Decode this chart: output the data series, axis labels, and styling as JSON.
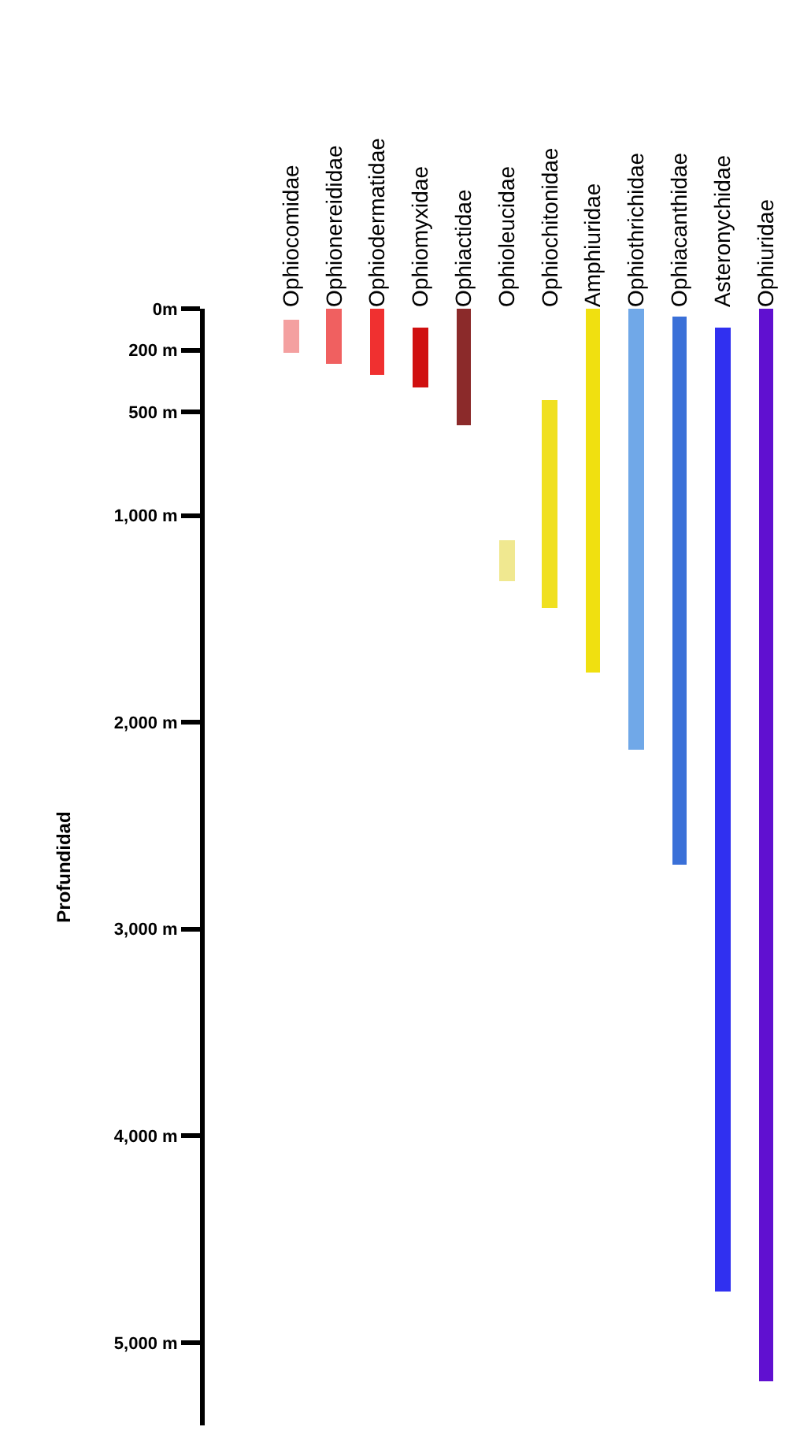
{
  "chart_data": {
    "type": "bar",
    "ylabel": "Profundidad",
    "categories": [
      "Ophiocomidae",
      "Ophionereididae",
      "Ophiodermatidae",
      "Ophiomyxidae",
      "Ophiactidae",
      "Ophioleucidae",
      "Ophiochitonidae",
      "Amphiuridae",
      "Ophiothrichidae",
      "Ophiacanthidae",
      "Asteronychidae",
      "Ophiuridae"
    ],
    "base": [
      50,
      0,
      0,
      90,
      0,
      1120,
      440,
      0,
      0,
      40,
      90,
      0
    ],
    "values": [
      160,
      270,
      320,
      290,
      560,
      200,
      1010,
      1760,
      2130,
      2650,
      4660,
      5190
    ],
    "colors": [
      "#f4a0a0",
      "#f06060",
      "#f03030",
      "#d01010",
      "#8b2a2a",
      "#f0e890",
      "#f0e020",
      "#f0e010",
      "#70a8e8",
      "#3a70d8",
      "#3030f0",
      "#6010d0"
    ],
    "ylim": [
      5400,
      0
    ],
    "yticks": [
      {
        "value": 0,
        "label": "0m"
      },
      {
        "value": 200,
        "label": "200 m"
      },
      {
        "value": 500,
        "label": "500 m"
      },
      {
        "value": 1000,
        "label": "1,000 m"
      },
      {
        "value": 2000,
        "label": "2,000 m"
      },
      {
        "value": 3000,
        "label": "3,000 m"
      },
      {
        "value": 4000,
        "label": "4,000 m"
      },
      {
        "value": 5000,
        "label": "5,000 m"
      }
    ],
    "orientation": "vertical"
  }
}
